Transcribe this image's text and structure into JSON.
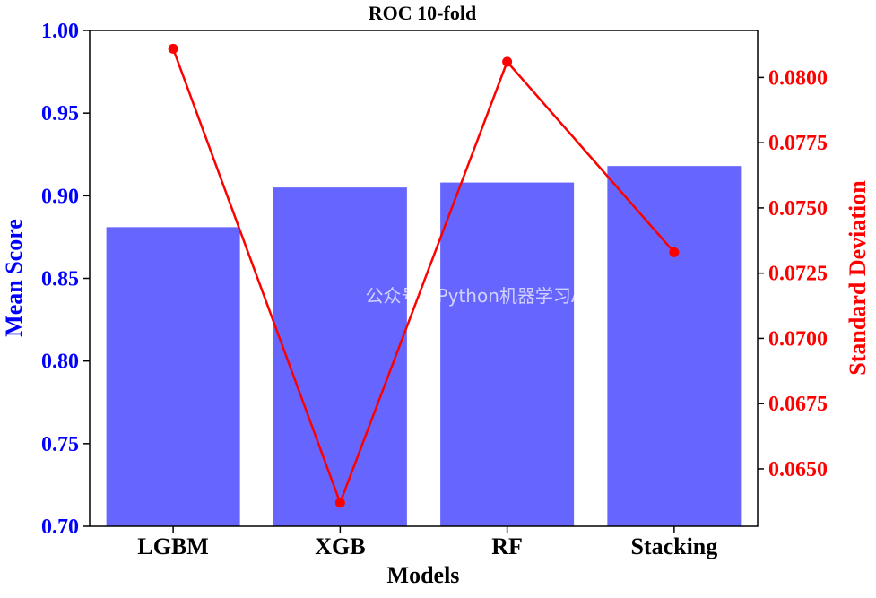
{
  "chart_data": {
    "type": "bar",
    "title": "ROC 10-fold",
    "xlabel": "Models",
    "ylabel": "Mean Score",
    "y2label": "Standard Deviation",
    "categories": [
      "LGBM",
      "XGB",
      "RF",
      "Stacking"
    ],
    "series": [
      {
        "type": "bar",
        "axis": "left",
        "values": [
          0.881,
          0.905,
          0.908,
          0.918
        ]
      },
      {
        "type": "line",
        "axis": "right",
        "values": [
          0.0811,
          0.0637,
          0.0806,
          0.0733
        ]
      }
    ],
    "ylim": [
      0.7,
      1.0
    ],
    "yticks": [
      "0.70",
      "0.75",
      "0.80",
      "0.85",
      "0.90",
      "0.95",
      "1.00"
    ],
    "y2lim": [
      0.0628,
      0.0818
    ],
    "y2ticks": [
      "0.0650",
      "0.0675",
      "0.0700",
      "0.0725",
      "0.0750",
      "0.0775",
      "0.0800"
    ],
    "grid": false,
    "colors": {
      "bar": "#6666ff",
      "line": "#ff0000",
      "left_axis": "#0000ff",
      "right_axis": "#ff0000",
      "text": "#000000"
    }
  },
  "watermark": "公众号：Python机器学习AI"
}
